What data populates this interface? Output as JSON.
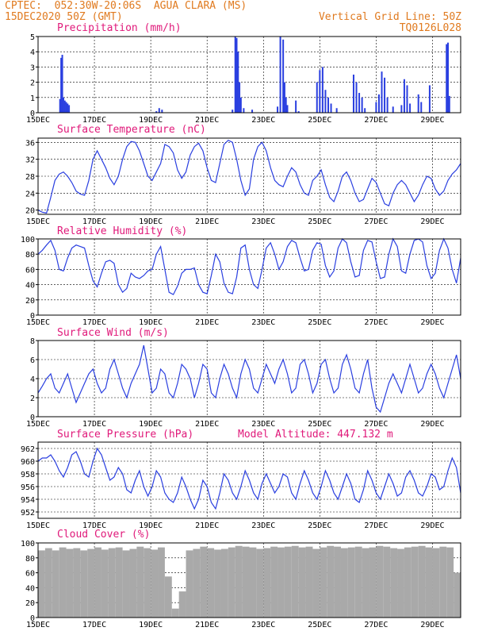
{
  "header": {
    "line1": "CPTEC:  052:30W-20:06S  AGUA CLARA (MS)",
    "line2": "15DEC2020 50Z (GMT)",
    "right1": "Vertical Grid Line: 50Z",
    "right2": "TQ0126L028"
  },
  "colors": {
    "header": "#e07a1f",
    "title": "#e0197a",
    "line": "#2a3fe0",
    "cloud": "#a9a9a9",
    "axis": "#000000"
  },
  "chart_data": [
    {
      "type": "bar",
      "title": "Precipitation (mm/h)",
      "ylim": [
        0,
        5
      ],
      "yticks": [
        0,
        1,
        2,
        3,
        4,
        5
      ],
      "xticks": [
        "15DEC",
        "17DEC",
        "19DEC",
        "21DEC",
        "23DEC",
        "25DEC",
        "27DEC",
        "29DEC"
      ],
      "xlim": [
        0,
        15
      ],
      "x": [
        0.78,
        0.82,
        0.86,
        0.9,
        0.95,
        1.0,
        1.05,
        1.1,
        4.2,
        4.3,
        4.4,
        6.9,
        7.0,
        7.05,
        7.1,
        7.15,
        7.2,
        7.3,
        7.6,
        8.5,
        8.6,
        8.7,
        8.75,
        8.8,
        8.85,
        9.15,
        9.25,
        9.9,
        10.0,
        10.1,
        10.2,
        10.3,
        10.4,
        10.6,
        11.2,
        11.3,
        11.4,
        11.5,
        11.6,
        12.0,
        12.1,
        12.2,
        12.3,
        12.4,
        12.6,
        12.9,
        13.0,
        13.1,
        13.2,
        13.5,
        13.6,
        13.9,
        14.5,
        14.55,
        14.6
      ],
      "values": [
        0.9,
        3.6,
        3.8,
        1.0,
        0.8,
        0.7,
        0.6,
        0.5,
        0.1,
        0.3,
        0.2,
        0.2,
        5.0,
        4.9,
        4.0,
        2.0,
        1.0,
        0.3,
        0.2,
        0.4,
        5.0,
        4.8,
        2.0,
        1.0,
        0.5,
        0.8,
        0.1,
        2.0,
        2.8,
        3.0,
        1.5,
        1.0,
        0.6,
        0.3,
        2.5,
        2.0,
        1.3,
        1.0,
        0.3,
        0.7,
        1.2,
        2.7,
        2.3,
        1.0,
        0.4,
        0.5,
        2.2,
        1.8,
        0.6,
        1.2,
        0.7,
        1.8,
        4.5,
        4.6,
        1.1
      ]
    },
    {
      "type": "line",
      "title": "Surface Temperature (nC)",
      "ylim": [
        19,
        37
      ],
      "yticks": [
        20,
        24,
        28,
        32,
        36
      ],
      "xticks": [
        "15DEC",
        "17DEC",
        "19DEC",
        "21DEC",
        "23DEC",
        "25DEC",
        "27DEC",
        "29DEC"
      ],
      "xlim": [
        0,
        15
      ],
      "x": [
        0,
        0.15,
        0.3,
        0.45,
        0.6,
        0.75,
        0.9,
        1.05,
        1.2,
        1.35,
        1.5,
        1.65,
        1.8,
        1.95,
        2.1,
        2.25,
        2.4,
        2.55,
        2.7,
        2.85,
        3.0,
        3.15,
        3.3,
        3.45,
        3.6,
        3.75,
        3.9,
        4.05,
        4.2,
        4.35,
        4.5,
        4.65,
        4.8,
        4.95,
        5.1,
        5.25,
        5.4,
        5.55,
        5.7,
        5.85,
        6.0,
        6.15,
        6.3,
        6.45,
        6.6,
        6.75,
        6.9,
        7.05,
        7.2,
        7.35,
        7.5,
        7.65,
        7.8,
        7.95,
        8.1,
        8.25,
        8.4,
        8.55,
        8.7,
        8.85,
        9.0,
        9.15,
        9.3,
        9.45,
        9.6,
        9.75,
        9.9,
        10.05,
        10.2,
        10.35,
        10.5,
        10.65,
        10.8,
        10.95,
        11.1,
        11.25,
        11.4,
        11.55,
        11.7,
        11.85,
        12.0,
        12.15,
        12.3,
        12.45,
        12.6,
        12.75,
        12.9,
        13.05,
        13.2,
        13.35,
        13.5,
        13.65,
        13.8,
        13.95,
        14.1,
        14.25,
        14.4,
        14.55,
        14.7,
        14.85,
        15.0
      ],
      "values": [
        20,
        19.5,
        19.3,
        23,
        27,
        28.5,
        29,
        28,
        26.5,
        24.5,
        23.8,
        23.5,
        27,
        32,
        34,
        32,
        30,
        27.5,
        26,
        28,
        32,
        35,
        36.2,
        36,
        34,
        31,
        28,
        27,
        29,
        31,
        35.5,
        35,
        33.5,
        29.5,
        27.5,
        29,
        33,
        35,
        35.8,
        34,
        30,
        27,
        26.5,
        31,
        35.5,
        36.5,
        36,
        32,
        27,
        23.5,
        25,
        32,
        35,
        36,
        34,
        30,
        27,
        26,
        25.5,
        28,
        30,
        29,
        26,
        24,
        23.5,
        27,
        28,
        29.5,
        26,
        23,
        22,
        24.5,
        28,
        29,
        27,
        24,
        22,
        22.5,
        25,
        27.5,
        26.5,
        24,
        21.5,
        21,
        24,
        26,
        27,
        26,
        24,
        22,
        23.5,
        26,
        28,
        27.5,
        25,
        23.5,
        24.5,
        27,
        28.5,
        29.5,
        31
      ]
    },
    {
      "type": "line",
      "title": "Relative Humidity (%)",
      "ylim": [
        0,
        100
      ],
      "yticks": [
        0,
        20,
        40,
        60,
        80,
        100
      ],
      "xticks": [
        "15DEC",
        "17DEC",
        "19DEC",
        "21DEC",
        "23DEC",
        "25DEC",
        "27DEC",
        "29DEC"
      ],
      "xlim": [
        0,
        15
      ],
      "x": [
        0,
        0.15,
        0.3,
        0.45,
        0.6,
        0.75,
        0.9,
        1.05,
        1.2,
        1.35,
        1.5,
        1.65,
        1.8,
        1.95,
        2.1,
        2.25,
        2.4,
        2.55,
        2.7,
        2.85,
        3.0,
        3.15,
        3.3,
        3.45,
        3.6,
        3.75,
        3.9,
        4.05,
        4.2,
        4.35,
        4.5,
        4.65,
        4.8,
        4.95,
        5.1,
        5.25,
        5.4,
        5.55,
        5.7,
        5.85,
        6.0,
        6.15,
        6.3,
        6.45,
        6.6,
        6.75,
        6.9,
        7.05,
        7.2,
        7.35,
        7.5,
        7.65,
        7.8,
        7.95,
        8.1,
        8.25,
        8.4,
        8.55,
        8.7,
        8.85,
        9.0,
        9.15,
        9.3,
        9.45,
        9.6,
        9.75,
        9.9,
        10.05,
        10.2,
        10.35,
        10.5,
        10.65,
        10.8,
        10.95,
        11.1,
        11.25,
        11.4,
        11.55,
        11.7,
        11.85,
        12.0,
        12.15,
        12.3,
        12.45,
        12.6,
        12.75,
        12.9,
        13.05,
        13.2,
        13.35,
        13.5,
        13.65,
        13.8,
        13.95,
        14.1,
        14.25,
        14.4,
        14.55,
        14.7,
        14.85,
        15.0
      ],
      "values": [
        80,
        85,
        92,
        98,
        85,
        60,
        58,
        75,
        88,
        92,
        90,
        88,
        65,
        45,
        37,
        55,
        70,
        72,
        68,
        40,
        30,
        35,
        55,
        50,
        48,
        52,
        58,
        60,
        80,
        90,
        60,
        30,
        27,
        38,
        55,
        60,
        60,
        62,
        40,
        30,
        28,
        52,
        80,
        70,
        42,
        30,
        28,
        50,
        88,
        92,
        60,
        40,
        35,
        60,
        88,
        95,
        80,
        60,
        70,
        90,
        98,
        95,
        75,
        58,
        60,
        85,
        95,
        93,
        65,
        50,
        58,
        88,
        100,
        95,
        70,
        50,
        52,
        85,
        98,
        96,
        70,
        48,
        50,
        80,
        100,
        90,
        58,
        55,
        80,
        98,
        100,
        96,
        65,
        48,
        55,
        85,
        100,
        88,
        60,
        42,
        75
      ]
    },
    {
      "type": "line",
      "title": "Surface Wind (m/s)",
      "ylim": [
        0,
        8
      ],
      "yticks": [
        0,
        2,
        4,
        6,
        8
      ],
      "xticks": [
        "15DEC",
        "17DEC",
        "19DEC",
        "21DEC",
        "23DEC",
        "25DEC",
        "27DEC",
        "29DEC"
      ],
      "xlim": [
        0,
        15
      ],
      "x": [
        0,
        0.15,
        0.3,
        0.45,
        0.6,
        0.75,
        0.9,
        1.05,
        1.2,
        1.35,
        1.5,
        1.65,
        1.8,
        1.95,
        2.1,
        2.25,
        2.4,
        2.55,
        2.7,
        2.85,
        3.0,
        3.15,
        3.3,
        3.45,
        3.6,
        3.75,
        3.9,
        4.05,
        4.2,
        4.35,
        4.5,
        4.65,
        4.8,
        4.95,
        5.1,
        5.25,
        5.4,
        5.55,
        5.7,
        5.85,
        6.0,
        6.15,
        6.3,
        6.45,
        6.6,
        6.75,
        6.9,
        7.05,
        7.2,
        7.35,
        7.5,
        7.65,
        7.8,
        7.95,
        8.1,
        8.25,
        8.4,
        8.55,
        8.7,
        8.85,
        9.0,
        9.15,
        9.3,
        9.45,
        9.6,
        9.75,
        9.9,
        10.05,
        10.2,
        10.35,
        10.5,
        10.65,
        10.8,
        10.95,
        11.1,
        11.25,
        11.4,
        11.55,
        11.7,
        11.85,
        12.0,
        12.15,
        12.3,
        12.45,
        12.6,
        12.75,
        12.9,
        13.05,
        13.2,
        13.35,
        13.5,
        13.65,
        13.8,
        13.95,
        14.1,
        14.25,
        14.4,
        14.55,
        14.7,
        14.85,
        15.0
      ],
      "values": [
        2.5,
        3.2,
        4.0,
        4.5,
        3.0,
        2.5,
        3.5,
        4.5,
        3.0,
        1.5,
        2.5,
        3.5,
        4.5,
        5.0,
        3.5,
        2.5,
        3.0,
        5.0,
        6.0,
        4.5,
        3.0,
        2.0,
        3.5,
        4.5,
        5.5,
        7.5,
        5.0,
        2.5,
        3.0,
        5.0,
        4.5,
        2.5,
        2.0,
        3.5,
        5.5,
        5.0,
        4.0,
        2.0,
        3.5,
        5.5,
        5.0,
        2.5,
        2.0,
        4.0,
        5.5,
        4.5,
        3.0,
        2.0,
        4.5,
        6.0,
        5.0,
        3.0,
        2.5,
        4.0,
        5.5,
        4.5,
        3.5,
        5.0,
        6.0,
        4.5,
        2.5,
        3.0,
        5.5,
        6.0,
        4.5,
        2.5,
        3.5,
        5.5,
        6.0,
        4.0,
        2.5,
        3.0,
        5.5,
        6.5,
        5.0,
        3.0,
        2.5,
        4.5,
        6.0,
        3.0,
        1.0,
        0.5,
        2.0,
        3.5,
        4.5,
        3.5,
        2.5,
        4.0,
        5.5,
        4.0,
        2.5,
        3.0,
        4.5,
        5.5,
        4.5,
        3.0,
        2.0,
        3.5,
        5.0,
        6.5,
        4.0
      ]
    },
    {
      "type": "line",
      "title": "Surface Pressure (hPa)",
      "annotation": "Model Altitude: 447.132 m",
      "ylim": [
        951,
        963
      ],
      "yticks": [
        952,
        954,
        956,
        958,
        960,
        962
      ],
      "xticks": [
        "15DEC",
        "17DEC",
        "19DEC",
        "21DEC",
        "23DEC",
        "25DEC",
        "27DEC",
        "29DEC"
      ],
      "xlim": [
        0,
        15
      ],
      "x": [
        0,
        0.15,
        0.3,
        0.45,
        0.6,
        0.75,
        0.9,
        1.05,
        1.2,
        1.35,
        1.5,
        1.65,
        1.8,
        1.95,
        2.1,
        2.25,
        2.4,
        2.55,
        2.7,
        2.85,
        3.0,
        3.15,
        3.3,
        3.45,
        3.6,
        3.75,
        3.9,
        4.05,
        4.2,
        4.35,
        4.5,
        4.65,
        4.8,
        4.95,
        5.1,
        5.25,
        5.4,
        5.55,
        5.7,
        5.85,
        6.0,
        6.15,
        6.3,
        6.45,
        6.6,
        6.75,
        6.9,
        7.05,
        7.2,
        7.35,
        7.5,
        7.65,
        7.8,
        7.95,
        8.1,
        8.25,
        8.4,
        8.55,
        8.7,
        8.85,
        9.0,
        9.15,
        9.3,
        9.45,
        9.6,
        9.75,
        9.9,
        10.05,
        10.2,
        10.35,
        10.5,
        10.65,
        10.8,
        10.95,
        11.1,
        11.25,
        11.4,
        11.55,
        11.7,
        11.85,
        12.0,
        12.15,
        12.3,
        12.45,
        12.6,
        12.75,
        12.9,
        13.05,
        13.2,
        13.35,
        13.5,
        13.65,
        13.8,
        13.95,
        14.1,
        14.25,
        14.4,
        14.55,
        14.7,
        14.85,
        15.0
      ],
      "values": [
        960,
        960.5,
        960.5,
        961,
        960,
        958.5,
        957.5,
        959,
        961,
        961.5,
        960,
        958,
        957.5,
        960,
        962,
        961,
        959,
        957,
        957.5,
        959,
        958,
        955.5,
        955,
        957,
        958.5,
        956,
        954.5,
        956,
        958.5,
        957.5,
        955,
        954,
        953.5,
        955,
        957.5,
        956,
        954,
        952.5,
        954,
        957,
        956,
        953.5,
        952.5,
        955,
        958,
        957,
        955,
        954,
        956,
        958.5,
        957,
        955,
        954,
        956.5,
        958,
        956.5,
        955,
        956,
        958,
        957.5,
        955,
        954,
        956.5,
        958.5,
        957,
        955,
        954,
        956,
        958.5,
        957,
        955,
        954,
        956,
        958,
        956.5,
        954,
        953.5,
        955.5,
        958.5,
        957,
        955,
        954,
        956,
        958,
        956.5,
        954.5,
        955,
        957.5,
        958.5,
        957,
        955,
        954.5,
        956,
        958,
        957.5,
        955.5,
        956,
        958.5,
        960.5,
        959,
        955
      ]
    },
    {
      "type": "bar",
      "title": "Cloud Cover (%)",
      "ylim": [
        0,
        100
      ],
      "yticks": [
        0,
        20,
        40,
        60,
        80,
        100
      ],
      "xticks": [
        "15DEC",
        "17DEC",
        "19DEC",
        "21DEC",
        "23DEC",
        "25DEC",
        "27DEC",
        "29DEC"
      ],
      "xlim": [
        0,
        15
      ],
      "x": [
        0,
        0.25,
        0.5,
        0.75,
        1.0,
        1.25,
        1.5,
        1.75,
        2.0,
        2.25,
        2.5,
        2.75,
        3.0,
        3.25,
        3.5,
        3.75,
        4.0,
        4.25,
        4.5,
        4.75,
        5.0,
        5.25,
        5.5,
        5.75,
        6.0,
        6.25,
        6.5,
        6.75,
        7.0,
        7.25,
        7.5,
        7.75,
        8.0,
        8.25,
        8.5,
        8.75,
        9.0,
        9.25,
        9.5,
        9.75,
        10.0,
        10.25,
        10.5,
        10.75,
        11.0,
        11.25,
        11.5,
        11.75,
        12.0,
        12.25,
        12.5,
        12.75,
        13.0,
        13.25,
        13.5,
        13.75,
        14.0,
        14.25,
        14.5,
        14.75
      ],
      "values": [
        90,
        93,
        90,
        94,
        92,
        93,
        90,
        92,
        94,
        91,
        93,
        94,
        90,
        92,
        95,
        93,
        91,
        94,
        55,
        12,
        35,
        90,
        92,
        95,
        93,
        91,
        92,
        94,
        96,
        95,
        94,
        92,
        93,
        95,
        94,
        95,
        96,
        94,
        95,
        92,
        94,
        96,
        95,
        93,
        94,
        95,
        93,
        94,
        96,
        95,
        93,
        92,
        94,
        95,
        96,
        94,
        93,
        95,
        94,
        60
      ]
    }
  ]
}
